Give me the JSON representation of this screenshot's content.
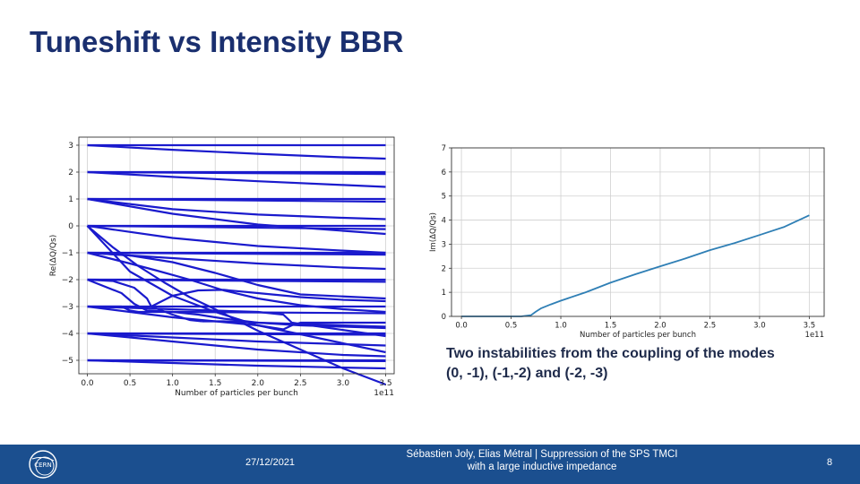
{
  "slide": {
    "title": "Tuneshift vs Intensity BBR",
    "caption_line1": "Two instabilities from the coupling of the modes",
    "caption_line2": "(0, -1), (-1,-2) and (-2, -3)"
  },
  "footer": {
    "date": "27/12/2021",
    "authors_line1": "Sébastien Joly, Elias Métral | Suppression of the SPS TMCI",
    "authors_line2": "with a large inductive impedance",
    "page": "8",
    "logo_text": "CERN",
    "colors": {
      "bar": "#1b4f8f",
      "text": "#ffffff"
    }
  },
  "chart_data": [
    {
      "type": "line",
      "xlabel": "Number of particles per bunch",
      "ylabel": "Re(ΔQ/Qs)",
      "x_scale_label": "1e11",
      "xlim": [
        -0.1,
        3.6
      ],
      "ylim": [
        -5.5,
        3.3
      ],
      "xticks": [
        0.0,
        0.5,
        1.0,
        1.5,
        2.0,
        2.5,
        3.0,
        3.5
      ],
      "xtick_labels": [
        "0.0",
        "0.5",
        "1.0",
        "1.5",
        "2.0",
        "2.5",
        "3.0",
        "3.5"
      ],
      "yticks": [
        -5,
        -4,
        -3,
        -2,
        -1,
        0,
        1,
        2,
        3
      ],
      "ytick_labels": [
        "−5",
        "−4",
        "−3",
        "−2",
        "−1",
        "0",
        "1",
        "2",
        "3"
      ],
      "grid": true,
      "color": "#1a1acd",
      "series": [
        {
          "x": [
            0,
            3.5
          ],
          "y": [
            3.0,
            3.0
          ]
        },
        {
          "x": [
            0,
            1,
            2,
            3,
            3.5
          ],
          "y": [
            3.0,
            2.83,
            2.68,
            2.55,
            2.5
          ]
        },
        {
          "x": [
            0,
            3.5
          ],
          "y": [
            2.0,
            2.0
          ]
        },
        {
          "x": [
            0,
            3.5
          ],
          "y": [
            2.0,
            1.93
          ]
        },
        {
          "x": [
            0,
            1,
            2,
            3,
            3.5
          ],
          "y": [
            2.0,
            1.82,
            1.66,
            1.52,
            1.45
          ]
        },
        {
          "x": [
            0,
            3.5
          ],
          "y": [
            1.0,
            1.0
          ]
        },
        {
          "x": [
            0,
            3.5
          ],
          "y": [
            1.0,
            0.9
          ]
        },
        {
          "x": [
            0,
            1,
            2,
            3,
            3.5
          ],
          "y": [
            1.0,
            0.62,
            0.42,
            0.3,
            0.25
          ]
        },
        {
          "x": [
            0,
            1,
            2,
            3.5
          ],
          "y": [
            1.0,
            0.45,
            0.05,
            -0.3
          ]
        },
        {
          "x": [
            0,
            3.5
          ],
          "y": [
            0.0,
            0.0
          ]
        },
        {
          "x": [
            0,
            3.5
          ],
          "y": [
            0.0,
            -0.12
          ]
        },
        {
          "x": [
            0,
            1,
            2,
            3,
            3.5
          ],
          "y": [
            0.0,
            -0.45,
            -0.75,
            -0.92,
            -1.0
          ]
        },
        {
          "x": [
            0,
            0.5,
            1,
            1.5,
            2,
            3.5
          ],
          "y": [
            0.0,
            -1.7,
            -2.6,
            -3.2,
            -3.7,
            -4.7
          ]
        },
        {
          "x": [
            0,
            0.3,
            0.6,
            0.9,
            1.2,
            1.5,
            2,
            2.5,
            3,
            3.5
          ],
          "y": [
            0.0,
            -0.8,
            -1.5,
            -2.1,
            -2.65,
            -3.1,
            -3.9,
            -4.6,
            -5.3,
            -5.9
          ]
        },
        {
          "x": [
            0,
            3.5
          ],
          "y": [
            -1.0,
            -1.0
          ]
        },
        {
          "x": [
            0,
            3.5
          ],
          "y": [
            -1.0,
            -1.07
          ]
        },
        {
          "x": [
            0,
            1,
            2,
            3,
            3.5
          ],
          "y": [
            -1.0,
            -1.2,
            -1.4,
            -1.55,
            -1.6
          ]
        },
        {
          "x": [
            0,
            0.5,
            1,
            1.5,
            2,
            2.5,
            3.5
          ],
          "y": [
            -1.0,
            -1.1,
            -1.35,
            -1.75,
            -2.2,
            -2.55,
            -2.7
          ]
        },
        {
          "x": [
            0,
            0.5,
            0.8,
            1.2,
            1.6,
            2.0,
            2.5,
            3.0,
            3.5
          ],
          "y": [
            -1.0,
            -1.4,
            -1.65,
            -2.0,
            -2.4,
            -2.7,
            -2.95,
            -3.1,
            -3.2
          ]
        },
        {
          "x": [
            0,
            3.5
          ],
          "y": [
            -2.0,
            -2.0
          ]
        },
        {
          "x": [
            0,
            3.5
          ],
          "y": [
            -2.0,
            -2.08
          ]
        },
        {
          "x": [
            0,
            0.3,
            0.55,
            0.7,
            0.75
          ],
          "y": [
            -2.0,
            -2.05,
            -2.3,
            -2.7,
            -3.0
          ]
        },
        {
          "x": [
            0.75,
            1.0,
            1.3,
            1.6,
            2.0,
            2.5,
            3.0,
            3.5
          ],
          "y": [
            -3.0,
            -2.6,
            -2.4,
            -2.38,
            -2.5,
            -2.65,
            -2.75,
            -2.8
          ]
        },
        {
          "x": [
            0.75,
            1.0,
            1.2,
            1.35
          ],
          "y": [
            -3.0,
            -3.3,
            -3.5,
            -3.55
          ]
        },
        {
          "x": [
            1.35,
            1.6,
            2.0,
            2.5,
            3.5
          ],
          "y": [
            -3.55,
            -3.55,
            -3.6,
            -3.65,
            -3.75
          ]
        },
        {
          "x": [
            0,
            0.4,
            0.55,
            0.7,
            1.0,
            1.3,
            1.6,
            2.0,
            2.5,
            3.5
          ],
          "y": [
            -2.0,
            -2.5,
            -2.9,
            -3.15,
            -3.2,
            -3.3,
            -3.45,
            -3.6,
            -3.7,
            -3.8
          ]
        },
        {
          "x": [
            0,
            3.5
          ],
          "y": [
            -3.0,
            -3.0
          ]
        },
        {
          "x": [
            0,
            0.4,
            0.5,
            0.6,
            1.0,
            3.5
          ],
          "y": [
            -3.0,
            -3.0,
            -3.15,
            -3.2,
            -3.2,
            -3.25
          ]
        },
        {
          "x": [
            0,
            1,
            2,
            2.3,
            2.4,
            3.5
          ],
          "y": [
            -3.0,
            -3.1,
            -3.2,
            -3.3,
            -3.6,
            -4.1
          ]
        },
        {
          "x": [
            0,
            1,
            2,
            2.3,
            2.4,
            2.5,
            3.5
          ],
          "y": [
            -3.0,
            -3.4,
            -3.7,
            -3.85,
            -3.7,
            -3.6,
            -3.6
          ]
        },
        {
          "x": [
            0,
            3.5
          ],
          "y": [
            -4.0,
            -4.0
          ]
        },
        {
          "x": [
            0,
            3.5
          ],
          "y": [
            -4.0,
            -4.05
          ]
        },
        {
          "x": [
            0,
            1,
            2,
            3,
            3.5
          ],
          "y": [
            -4.0,
            -4.15,
            -4.3,
            -4.4,
            -4.45
          ]
        },
        {
          "x": [
            0,
            1,
            2,
            3,
            3.5
          ],
          "y": [
            -4.0,
            -4.3,
            -4.6,
            -4.8,
            -4.85
          ]
        },
        {
          "x": [
            0,
            3.5
          ],
          "y": [
            -5.0,
            -5.0
          ]
        },
        {
          "x": [
            0,
            3.5
          ],
          "y": [
            -5.0,
            -5.03
          ]
        },
        {
          "x": [
            0,
            1,
            2,
            3,
            3.5
          ],
          "y": [
            -5.0,
            -5.1,
            -5.2,
            -5.27,
            -5.3
          ]
        }
      ]
    },
    {
      "type": "line",
      "xlabel": "Number of particles per bunch",
      "ylabel": "Im(ΔQ/Qs)",
      "x_scale_label": "1e11",
      "xlim": [
        -0.1,
        3.65
      ],
      "ylim": [
        0,
        7
      ],
      "xticks": [
        0.0,
        0.5,
        1.0,
        1.5,
        2.0,
        2.5,
        3.0,
        3.5
      ],
      "xtick_labels": [
        "0.0",
        "0.5",
        "1.0",
        "1.5",
        "2.0",
        "2.5",
        "3.0",
        "3.5"
      ],
      "yticks": [
        0,
        1,
        2,
        3,
        4,
        5,
        6,
        7
      ],
      "ytick_labels": [
        "0",
        "1",
        "2",
        "3",
        "4",
        "5",
        "6",
        "7"
      ],
      "grid": true,
      "color": "#2f7fb5",
      "series": [
        {
          "x": [
            0,
            0.3,
            0.6,
            0.7,
            0.75,
            0.8,
            0.9,
            1.0,
            1.25,
            1.5,
            1.75,
            2.0,
            2.25,
            2.5,
            2.75,
            3.0,
            3.25,
            3.5
          ],
          "y": [
            0.0,
            0.0,
            0.0,
            0.05,
            0.2,
            0.33,
            0.5,
            0.65,
            1.0,
            1.4,
            1.75,
            2.08,
            2.4,
            2.75,
            3.05,
            3.38,
            3.72,
            4.2
          ]
        }
      ]
    }
  ]
}
